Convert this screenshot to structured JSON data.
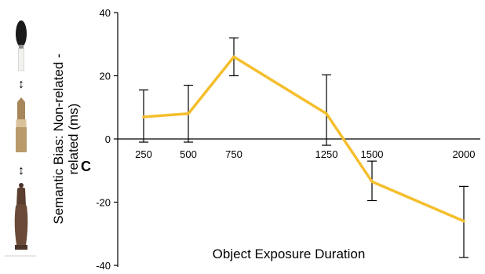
{
  "chart_data": {
    "type": "line",
    "xlabel": "Object Exposure Duration",
    "ylabel": "Semantic Bias: Non-related - related (ms)",
    "ylim": [
      -40,
      40
    ],
    "yticks": [
      40,
      20,
      0,
      -20,
      -40
    ],
    "x": [
      250,
      500,
      750,
      1250,
      1500,
      2000
    ],
    "series": [
      {
        "color": "#f5be2d",
        "values": [
          7,
          8,
          26,
          8,
          -13.5,
          -26
        ],
        "error_high": [
          15.5,
          17,
          32,
          20.3,
          -7,
          -15
        ],
        "error_low": [
          -1,
          -1,
          20,
          -2,
          -19.5,
          -37.5
        ]
      }
    ],
    "grid": false,
    "legend": "none"
  },
  "overlay_label": "C"
}
